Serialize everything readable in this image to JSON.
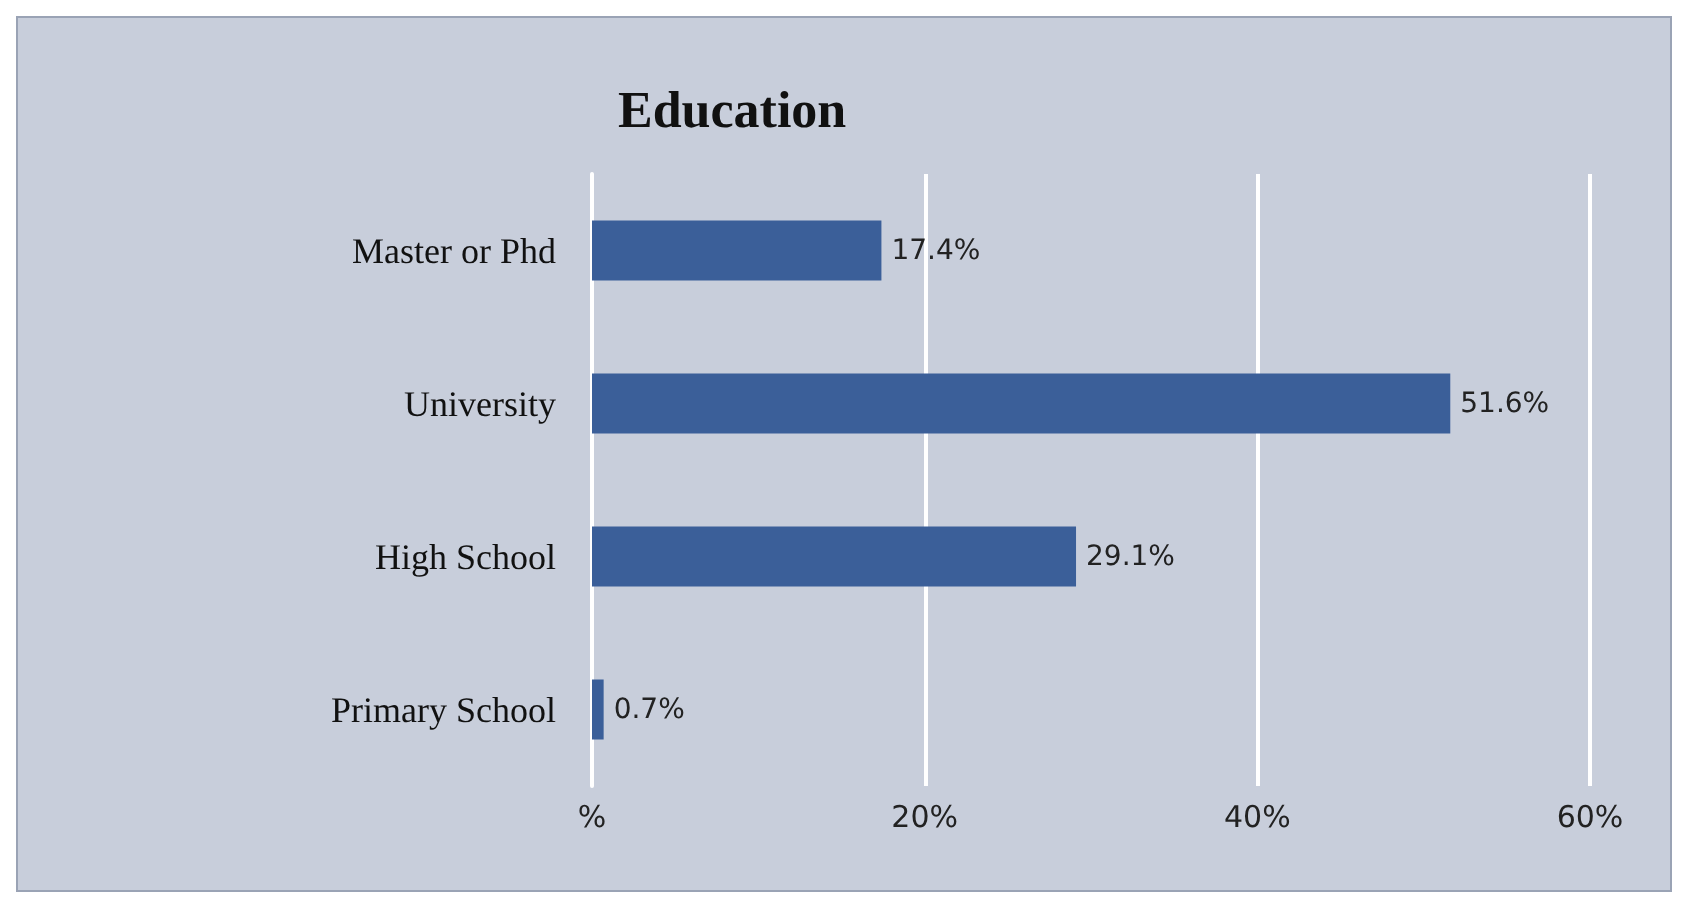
{
  "chart_data": {
    "type": "bar",
    "title": "Education",
    "orientation": "horizontal",
    "categories": [
      "Master or Phd",
      "University",
      "High School",
      "Primary School"
    ],
    "values": [
      17.4,
      51.6,
      29.1,
      0.7
    ],
    "value_labels": [
      "17.4%",
      "51.6%",
      "29.1%",
      "0.7%"
    ],
    "color": "#3b5f99",
    "xlim": [
      0,
      60
    ],
    "xticks": [
      {
        "value": 0,
        "label": "%"
      },
      {
        "value": 20,
        "label": "20%"
      },
      {
        "value": 40,
        "label": "40%"
      },
      {
        "value": 60,
        "label": "60%"
      }
    ],
    "grid": "x"
  }
}
